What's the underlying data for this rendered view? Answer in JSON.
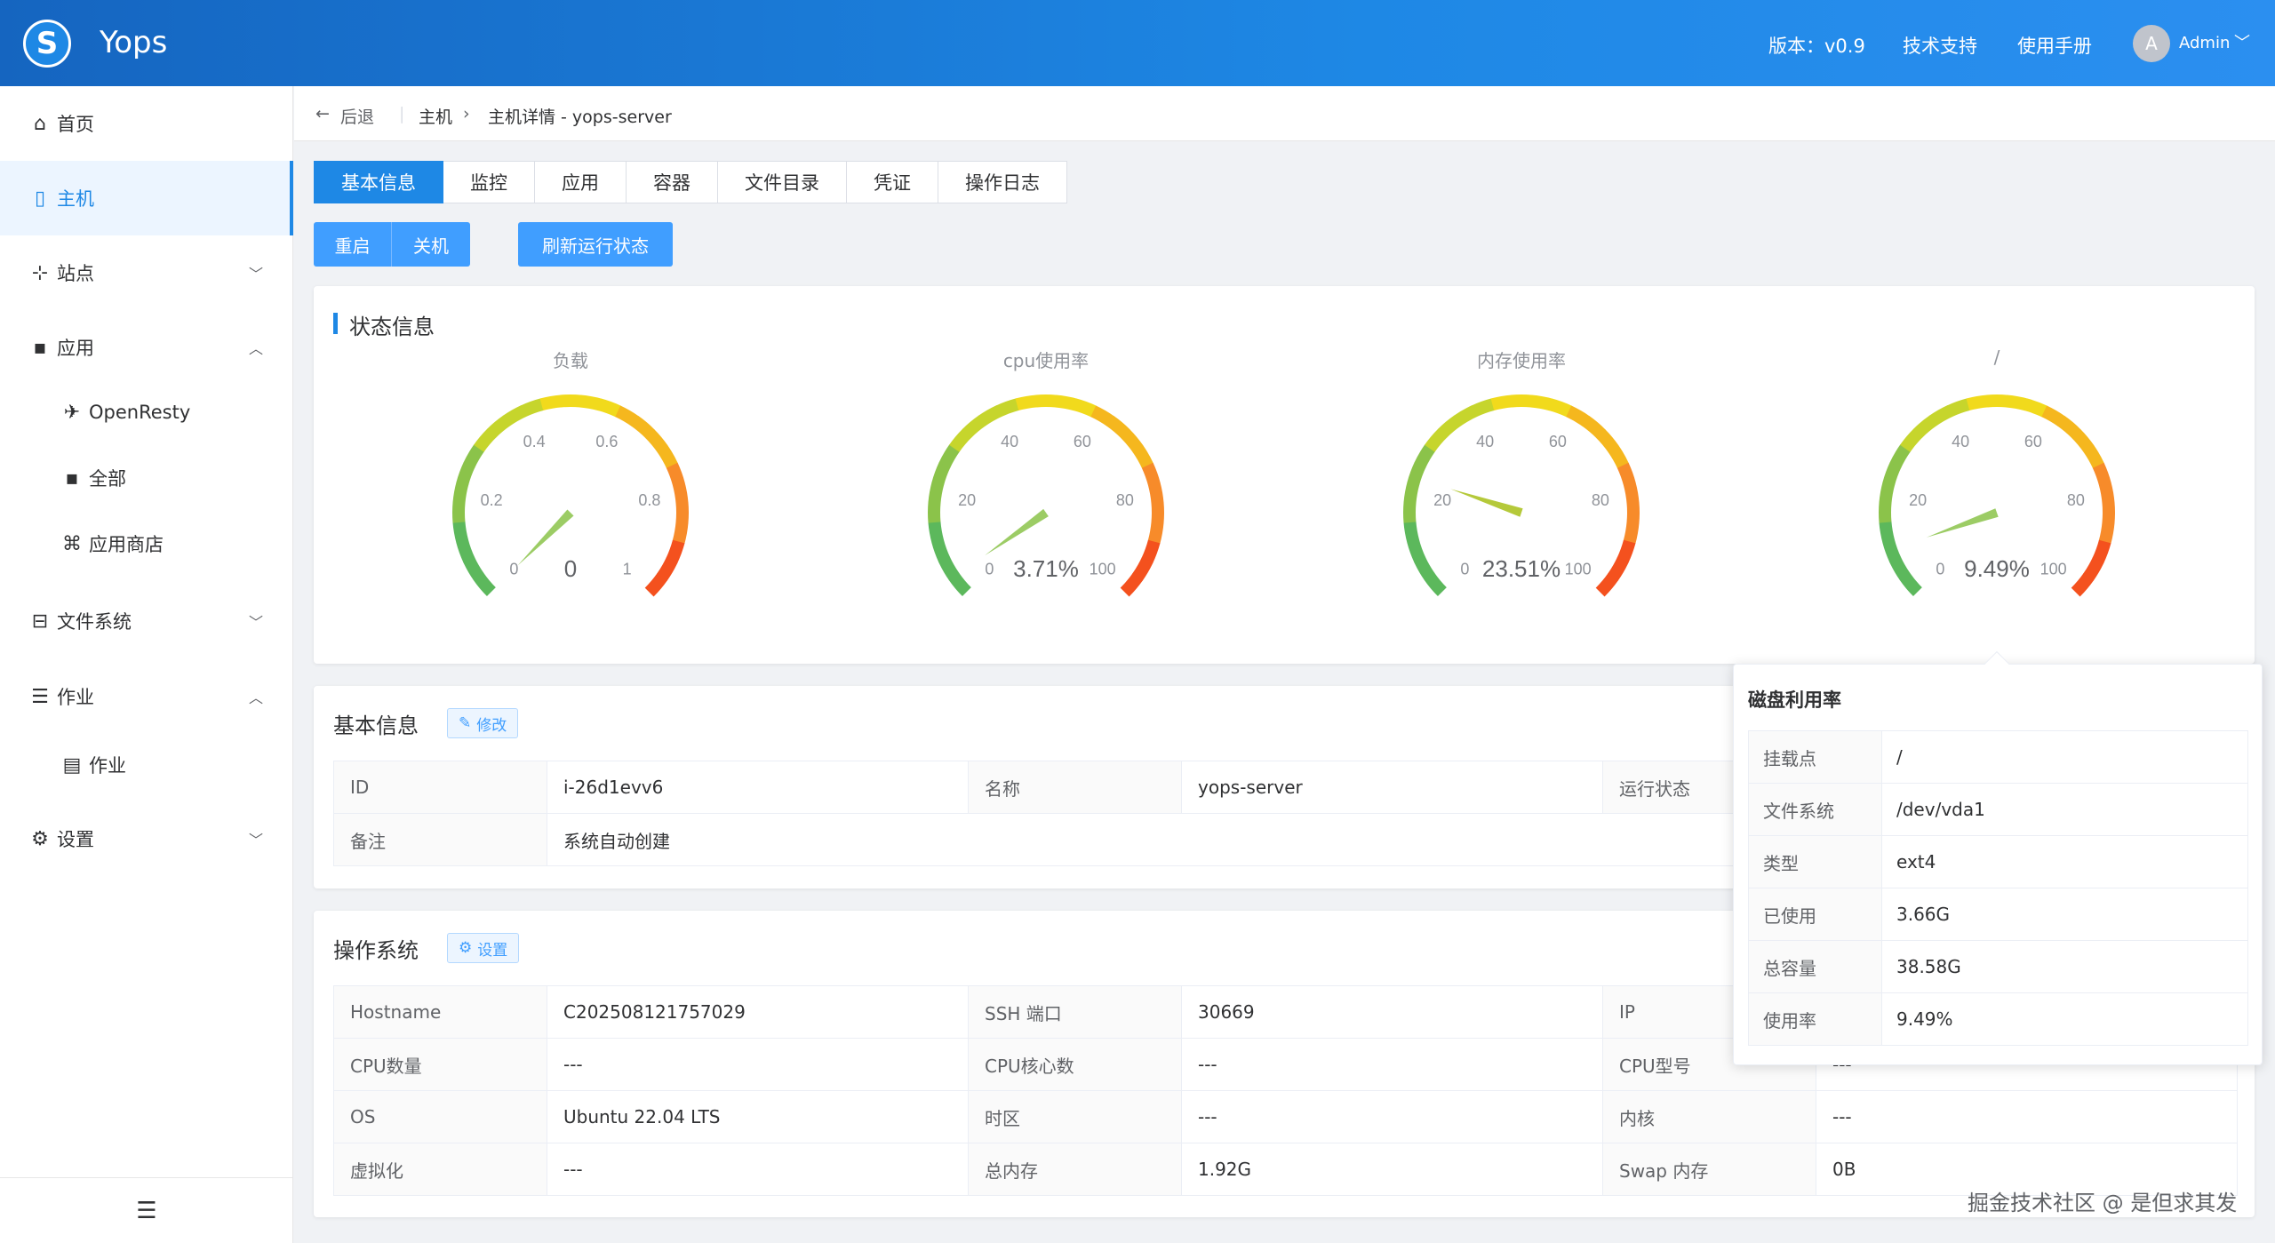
{
  "header": {
    "app_name": "Yops",
    "version": "版本：v0.9",
    "support": "技术支持",
    "manual": "使用手册",
    "avatar_letter": "A",
    "user": "Admin"
  },
  "sidebar": {
    "items": [
      {
        "label": "首页",
        "icon": "home-icon"
      },
      {
        "label": "主机",
        "icon": "server-icon"
      },
      {
        "label": "站点",
        "icon": "sitemap-icon"
      },
      {
        "label": "应用",
        "icon": "apps-icon"
      },
      {
        "label": "OpenResty",
        "icon": "openresty-icon"
      },
      {
        "label": "全部",
        "icon": "grid-icon"
      },
      {
        "label": "应用商店",
        "icon": "store-icon"
      },
      {
        "label": "文件系统",
        "icon": "disk-icon"
      },
      {
        "label": "作业",
        "icon": "job-icon"
      },
      {
        "label": "作业",
        "icon": "clipboard-icon"
      },
      {
        "label": "设置",
        "icon": "gear-icon"
      }
    ]
  },
  "breadcrumb": {
    "back": "后退",
    "host": "主机",
    "detail": "主机详情 - yops-server"
  },
  "tabs": [
    "基本信息",
    "监控",
    "应用",
    "容器",
    "文件目录",
    "凭证",
    "操作日志"
  ],
  "actions": {
    "restart": "重启",
    "shutdown": "关机",
    "refresh": "刷新运行状态"
  },
  "status": {
    "title": "状态信息",
    "gauges": [
      {
        "title": "负载",
        "value": 0,
        "display": "0",
        "max": 1,
        "ticks": [
          "0",
          "0.2",
          "0.4",
          "0.6",
          "0.8",
          "1"
        ]
      },
      {
        "title": "cpu使用率",
        "value": 3.71,
        "display": "3.71%",
        "max": 100,
        "ticks": [
          "0",
          "20",
          "40",
          "60",
          "80",
          "100"
        ]
      },
      {
        "title": "内存使用率",
        "value": 23.51,
        "display": "23.51%",
        "max": 100,
        "ticks": [
          "0",
          "20",
          "40",
          "60",
          "80",
          "100"
        ]
      },
      {
        "title": "/",
        "value": 9.49,
        "display": "9.49%",
        "max": 100,
        "ticks": [
          "0",
          "20",
          "40",
          "60",
          "80",
          "100"
        ]
      }
    ]
  },
  "basic": {
    "title": "基本信息",
    "edit": "修改",
    "rows": [
      [
        "ID",
        "i-26d1evv6",
        "名称",
        "yops-server",
        "运行状态",
        ""
      ],
      [
        "备注",
        "系统自动创建",
        "",
        "",
        "",
        ""
      ]
    ]
  },
  "os": {
    "title": "操作系统",
    "settings": "设置",
    "rows": [
      [
        "Hostname",
        "C202508121757029",
        "SSH 端口",
        "30669",
        "IP",
        ""
      ],
      [
        "CPU数量",
        "---",
        "CPU核心数",
        "---",
        "CPU型号",
        "---"
      ],
      [
        "OS",
        "Ubuntu 22.04 LTS",
        "时区",
        "---",
        "内核",
        "---"
      ],
      [
        "虚拟化",
        "---",
        "总内存",
        "1.92G",
        "Swap 内存",
        "0B"
      ]
    ]
  },
  "popover": {
    "title": "磁盘利用率",
    "rows": [
      [
        "挂载点",
        "/"
      ],
      [
        "文件系统",
        "/dev/vda1"
      ],
      [
        "类型",
        "ext4"
      ],
      [
        "已使用",
        "3.66G"
      ],
      [
        "总容量",
        "38.58G"
      ],
      [
        "使用率",
        "9.49%"
      ]
    ]
  },
  "watermark": "掘金技术社区 @ 是但求其发"
}
